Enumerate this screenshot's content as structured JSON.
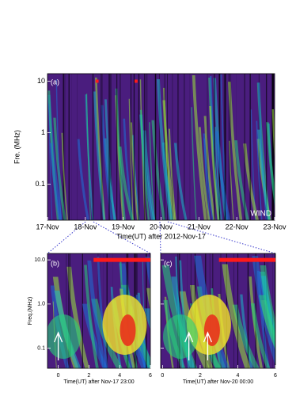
{
  "chart_data": [
    {
      "type": "spectrogram",
      "panel_label": "(a)",
      "annotation": "WIND",
      "x_label": "Time(UT) after 2012-Nov-17",
      "y_label": "Fre. (MHz)",
      "y_scale": "log",
      "xlim": [
        0,
        6
      ],
      "ylim": [
        0.02,
        14
      ],
      "xticks": [
        {
          "value": 0,
          "label": "17-Nov"
        },
        {
          "value": 1,
          "label": "18-Nov"
        },
        {
          "value": 2,
          "label": "19-Nov"
        },
        {
          "value": 3,
          "label": "20-Nov"
        },
        {
          "value": 4,
          "label": "21-Nov"
        },
        {
          "value": 5,
          "label": "22-Nov"
        },
        {
          "value": 6,
          "label": "23-Nov"
        }
      ],
      "yticks": [
        0.1,
        1,
        10
      ],
      "ytick_labels": true,
      "red_bars": [
        {
          "start": 1.27,
          "end": 1.35,
          "freq": 10
        },
        {
          "start": 2.3,
          "end": 2.38,
          "freq": 10
        }
      ],
      "arrows": [],
      "bar_color": "#ff1a1a"
    },
    {
      "type": "spectrogram",
      "panel_label": "(b)",
      "x_label": "Time(UT) after Nov-17 23:00",
      "y_label": "Freq.(MHz)",
      "y_scale": "log",
      "xlim": [
        -0.7,
        6
      ],
      "ylim": [
        0.035,
        14
      ],
      "xticks": [
        0,
        2,
        4,
        6
      ],
      "yticks": [
        0.1,
        {
          "value": 1,
          "label": "1.0"
        },
        {
          "value": 10,
          "label": "10.0"
        }
      ],
      "ytick_labels": true,
      "red_bars": [
        {
          "start": 2.3,
          "end": 6,
          "freq": 10
        }
      ],
      "arrows": [
        0
      ],
      "bar_color": "#ff1a1a"
    },
    {
      "type": "spectrogram",
      "panel_label": "(c)",
      "x_label": "Time(UT) after Nov-20 00:00",
      "y_scale": "log",
      "xlim": [
        -0.1,
        6
      ],
      "ylim": [
        0.035,
        14
      ],
      "xticks": [
        0,
        2,
        4,
        6
      ],
      "yticks": [
        0.1,
        1,
        10
      ],
      "ytick_labels": false,
      "red_bars": [
        {
          "start": 3.0,
          "end": 6,
          "freq": 10
        }
      ],
      "arrows": [
        1.4,
        2.4
      ],
      "bar_color": "#ff1a1a"
    }
  ]
}
